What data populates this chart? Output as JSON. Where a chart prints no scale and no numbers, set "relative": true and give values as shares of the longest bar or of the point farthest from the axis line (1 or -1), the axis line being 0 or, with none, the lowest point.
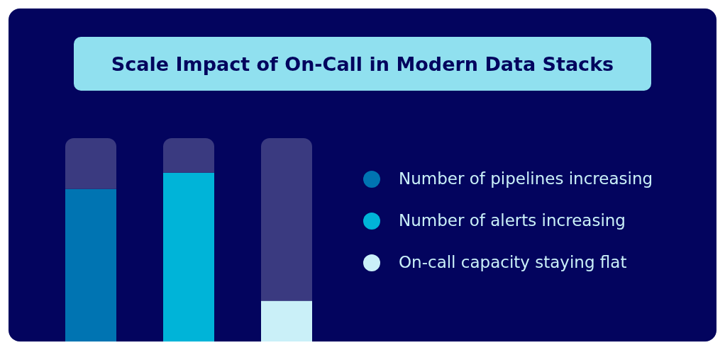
{
  "chart_data": {
    "type": "bar",
    "title": "Scale Impact of On-Call in Modern Data Stacks",
    "relative": true,
    "stacked": true,
    "legend": "right",
    "categories": [
      null,
      null,
      null
    ],
    "series": [
      {
        "name": "Number of pipelines increasing",
        "color": "#0074b2",
        "values": [
          0.75,
          null,
          null
        ]
      },
      {
        "name": "Number of alerts increasing",
        "color": "#00b4d8",
        "values": [
          null,
          0.83,
          null
        ]
      },
      {
        "name": "On-call capacity staying flat",
        "color": "#caf0f8",
        "values": [
          null,
          null,
          0.2
        ]
      },
      {
        "color": "#3a3a80",
        "values": [
          0.25,
          0.17,
          0.8
        ]
      }
    ]
  }
}
